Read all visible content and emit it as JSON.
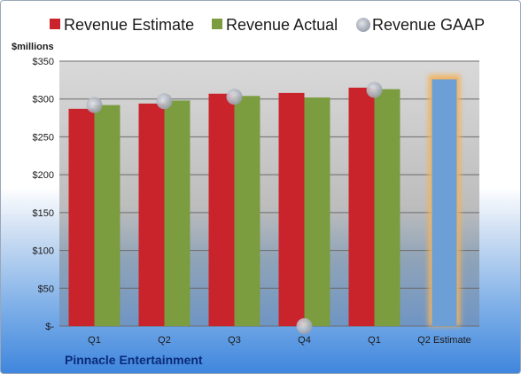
{
  "chart_data": {
    "type": "bar",
    "title": "",
    "ylabel": "$millions",
    "categories": [
      "Q1",
      "Q2",
      "Q3",
      "Q4",
      "Q1",
      "Q2 Estimate"
    ],
    "ylim": [
      0,
      350
    ],
    "yticks": [
      {
        "value": 0,
        "label": "$-"
      },
      {
        "value": 50,
        "label": "$50"
      },
      {
        "value": 100,
        "label": "$100"
      },
      {
        "value": 150,
        "label": "$150"
      },
      {
        "value": 200,
        "label": "$200"
      },
      {
        "value": 250,
        "label": "$250"
      },
      {
        "value": 300,
        "label": "$300"
      },
      {
        "value": 350,
        "label": "$350"
      }
    ],
    "series": [
      {
        "name": "Revenue Estimate",
        "color": "#c9242b",
        "values": [
          287,
          294,
          307,
          308,
          315,
          null
        ]
      },
      {
        "name": "Revenue Actual",
        "color": "#7b9c3f",
        "values": [
          292,
          298,
          304,
          302,
          313,
          null
        ]
      },
      {
        "name": "Revenue GAAP",
        "color": "#b8bec8",
        "type": "scatter",
        "values": [
          292,
          297,
          303,
          0,
          312,
          null
        ]
      }
    ],
    "estimate": {
      "category_index": 5,
      "value": 326,
      "color": "#6d9fd7",
      "glow": "#f3b25c"
    },
    "grid": true,
    "legend_position": "top"
  },
  "footer": {
    "company": "Pinnacle Entertainment"
  }
}
